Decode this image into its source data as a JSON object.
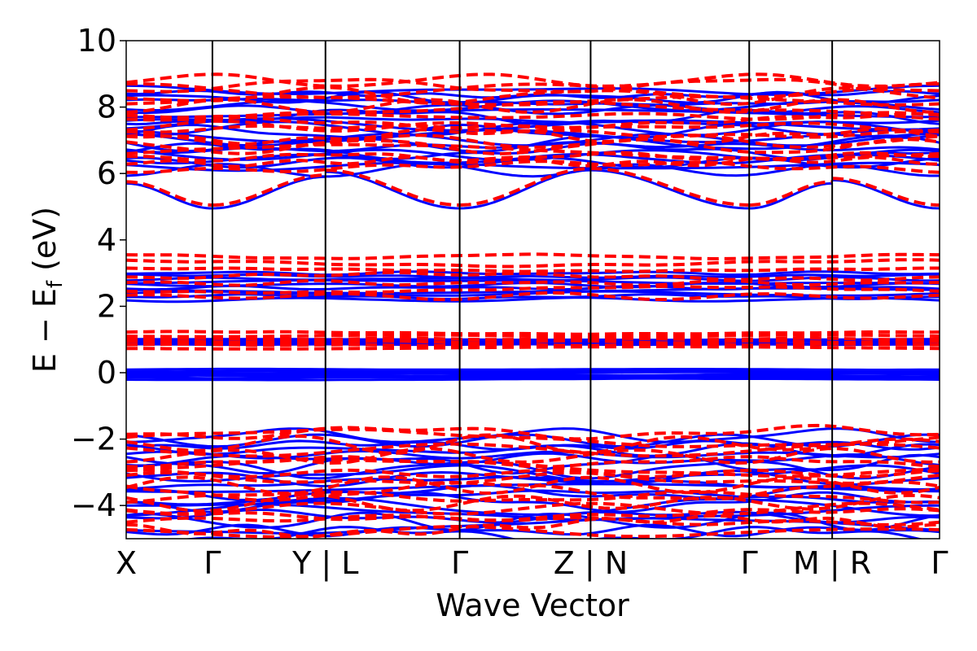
{
  "chart_data": {
    "type": "line",
    "title": "",
    "xlabel": "Wave Vector",
    "ylabel": {
      "main": "E − E",
      "sub": "f",
      "unit": "(eV)"
    },
    "ylim": [
      -5,
      10
    ],
    "yticks": [
      10,
      8,
      6,
      4,
      2,
      0,
      -2,
      -4
    ],
    "ytick_labels": [
      "10",
      "8",
      "6",
      "4",
      "2",
      "0",
      "−2",
      "−4"
    ],
    "xlim": [
      0,
      1
    ],
    "kpath_labels": [
      {
        "x": 0.0,
        "label": "X"
      },
      {
        "x": 0.106,
        "label": "Γ"
      },
      {
        "x": 0.245,
        "label": "Y | L"
      },
      {
        "x": 0.41,
        "label": "Γ"
      },
      {
        "x": 0.571,
        "label": "Z | N"
      },
      {
        "x": 0.766,
        "label": "Γ"
      },
      {
        "x": 0.868,
        "label": "M | R"
      },
      {
        "x": 1.0,
        "label": "Γ"
      }
    ],
    "segment_dividers": [
      0.106,
      0.245,
      0.41,
      0.571,
      0.766,
      0.868
    ],
    "grid": false,
    "series": [
      {
        "style": "solid",
        "color": "#0000ff",
        "groups": [
          {
            "range": [
              -4.9,
              -1.9
            ],
            "count": 22
          },
          {
            "range": [
              -0.2,
              0.1
            ],
            "count": 7
          },
          {
            "range": [
              0.85,
              1.0
            ],
            "count": 4
          },
          {
            "range": [
              2.2,
              3.0
            ],
            "count": 10
          },
          {
            "range": [
              6.1,
              8.5
            ],
            "count": 22
          }
        ],
        "lowest_conduction": {
          "x": [
            0.0,
            0.106,
            0.245,
            0.245,
            0.41,
            0.571,
            0.571,
            0.766,
            0.868,
            0.868,
            1.0
          ],
          "y": [
            5.7,
            4.95,
            5.9,
            6.05,
            4.95,
            6.1,
            6.1,
            4.95,
            5.7,
            5.8,
            4.95
          ]
        }
      },
      {
        "style": "dashed",
        "color": "#ff0000",
        "groups": [
          {
            "range": [
              -4.8,
              -1.8
            ],
            "count": 18
          },
          {
            "range": [
              0.75,
              1.2
            ],
            "count": 6
          },
          {
            "range": [
              2.3,
              3.5
            ],
            "count": 7
          },
          {
            "range": [
              6.2,
              8.8
            ],
            "count": 18
          }
        ],
        "lowest_conduction": {
          "x": [
            0.0,
            0.106,
            0.245,
            0.245,
            0.41,
            0.571,
            0.571,
            0.766,
            0.868,
            0.868,
            1.0
          ],
          "y": [
            5.75,
            5.05,
            5.95,
            6.1,
            5.05,
            6.15,
            6.15,
            5.05,
            5.75,
            5.85,
            5.05
          ]
        }
      }
    ]
  }
}
